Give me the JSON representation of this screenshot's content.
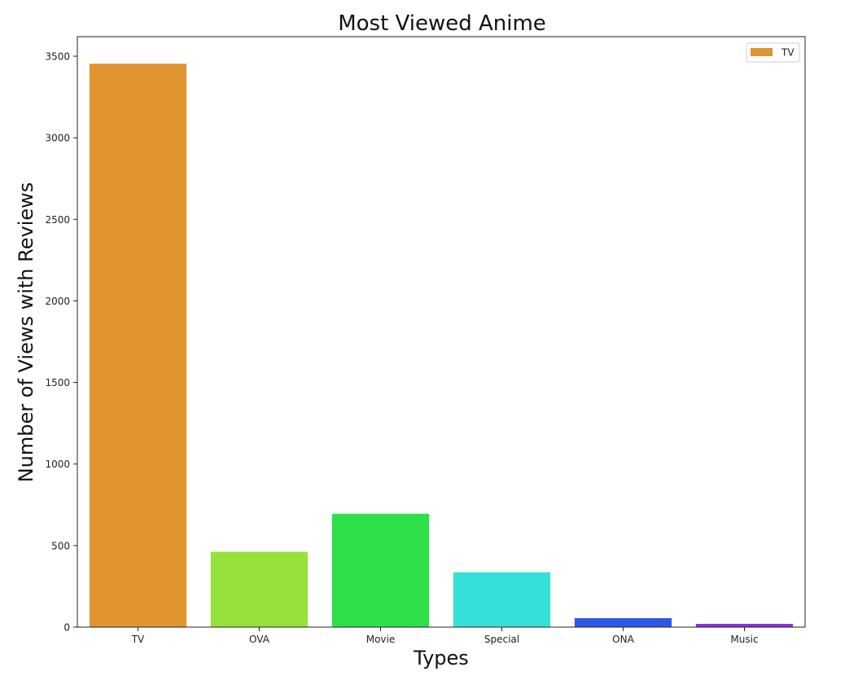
{
  "chart_data": {
    "type": "bar",
    "title": "Most Viewed Anime",
    "xlabel": "Types",
    "ylabel": "Number of Views with Reviews",
    "categories": [
      "TV",
      "OVA",
      "Movie",
      "Special",
      "ONA",
      "Music"
    ],
    "values": [
      3454,
      462,
      695,
      336,
      55,
      20
    ],
    "colors": [
      "#e09530",
      "#97e23a",
      "#2ee14a",
      "#34e0d8",
      "#2d58e4",
      "#8e2ee6"
    ],
    "ylim": [
      0,
      3620
    ],
    "yticks": [
      0,
      500,
      1000,
      1500,
      2000,
      2500,
      3000,
      3500
    ],
    "ytick_labels": [
      "0",
      "500",
      "1000",
      "1500",
      "2000",
      "2500",
      "3000",
      "3500"
    ],
    "grid": false,
    "legend": {
      "placement": "top-right",
      "entries": [
        {
          "label": "TV",
          "color": "#e09530"
        }
      ]
    }
  }
}
